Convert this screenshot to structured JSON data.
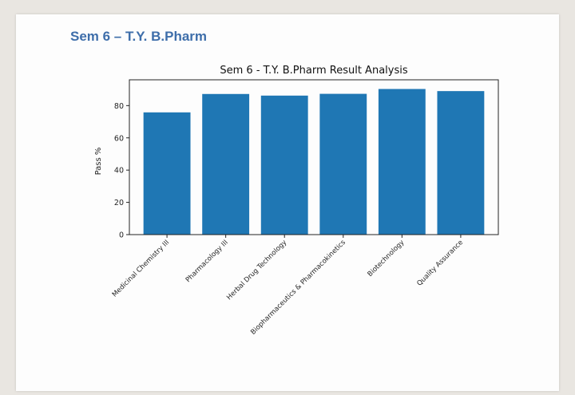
{
  "heading": "Sem 6 – T.Y. B.Pharm",
  "chart_data": {
    "type": "bar",
    "title": "Sem 6 - T.Y. B.Pharm Result Analysis",
    "xlabel": "",
    "ylabel": "Pass %",
    "categories": [
      "Medicinal Chemistry III",
      "Pharmacology III",
      "Herbal Drug Technology",
      "Biopharmaceutics & Pharmacokinetics",
      "Biotechnology",
      "Quality Assurance"
    ],
    "values": [
      75.8,
      87.2,
      86.2,
      87.3,
      90.3,
      89.0
    ],
    "ylim": [
      0,
      96
    ],
    "yticks": [
      0,
      20,
      40,
      60,
      80
    ],
    "bar_color": "#1f77b4",
    "grid": false,
    "legend": "none"
  }
}
